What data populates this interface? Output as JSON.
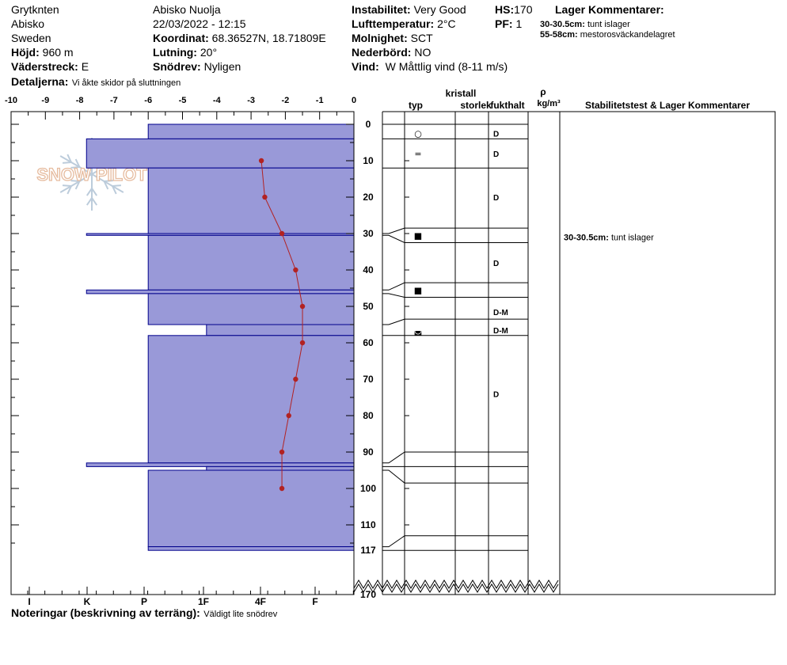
{
  "header": {
    "col1": {
      "line1": "Grytknten",
      "line2": "Abisko",
      "line3": "Sweden",
      "hojd_label": "Höjd:",
      "hojd_value": "960 m",
      "vaderstreck_label": "Väderstreck:",
      "vaderstreck_value": "E"
    },
    "col2": {
      "line1": "Abisko Nuolja",
      "line2": "22/03/2022 - 12:15",
      "koordinat_label": "Koordinat:",
      "koordinat_value": "68.36527N, 18.71809E",
      "lutning_label": "Lutning:",
      "lutning_value": "20°",
      "snodrev_label": "Snödrev:",
      "snodrev_value": "Nyligen"
    },
    "col3": {
      "instabilitet_label": "Instabilitet:",
      "instabilitet_value": "Very Good",
      "luft_label": "Lufttemperatur:",
      "luft_value": "2°C",
      "molnighet_label": "Molnighet:",
      "molnighet_value": "SCT",
      "nederbord_label": "Nederbörd:",
      "nederbord_value": "NO",
      "vind_label": "Vind:",
      "vind_value": "W Måttlig vind (8-11 m/s)"
    },
    "col4": {
      "hs_label": "HS:",
      "hs_value": "170",
      "pf_label": "PF:",
      "pf_value": "1"
    },
    "lager": {
      "title": "Lager Kommentarer:",
      "items": [
        {
          "range": "30-30.5cm:",
          "text": "tunt islager"
        },
        {
          "range": "55-58cm:",
          "text": "mestorosväckandelagret"
        }
      ]
    },
    "detaljer_label": "Detaljerna:",
    "detaljer_value": "Vi åkte skidor på sluttningen"
  },
  "notes": {
    "label": "Noteringar (beskrivning av terräng):",
    "value": "Väldigt lite snödrev"
  },
  "logo_text": "SNOW PILOT",
  "columns": {
    "kristall": "kristall",
    "typ": "typ",
    "storlek": "storlek",
    "fukthalt": "fukthalt",
    "rho": "ρ",
    "rho_unit": "kg/m³",
    "stab": "Stabilitetstest & Lager Kommentarer"
  },
  "colors": {
    "hardness_fill": "#9999d8",
    "hardness_stroke": "#00008b",
    "temp": "#b22222"
  },
  "chart_data": {
    "type": "snow-profile",
    "temperature_axis": {
      "ticks": [
        "-10",
        "-9",
        "-8",
        "-7",
        "-6",
        "-5",
        "-4",
        "-3",
        "-2",
        "-1",
        "0"
      ],
      "range": [
        -10,
        0
      ]
    },
    "hardness_axis": {
      "ticks": [
        "I",
        "K",
        "P",
        "1F",
        "4F",
        "F"
      ]
    },
    "depth_ticks": [
      "0",
      "10",
      "20",
      "30",
      "40",
      "50",
      "60",
      "70",
      "80",
      "90",
      "100",
      "110",
      "117",
      "170"
    ],
    "depth_range": [
      0,
      117
    ],
    "temperature_profile": [
      {
        "depth": 10,
        "temp": -2.7
      },
      {
        "depth": 20,
        "temp": -2.6
      },
      {
        "depth": 30,
        "temp": -2.1
      },
      {
        "depth": 40,
        "temp": -1.7
      },
      {
        "depth": 50,
        "temp": -1.5
      },
      {
        "depth": 60,
        "temp": -1.5
      },
      {
        "depth": 70,
        "temp": -1.7
      },
      {
        "depth": 80,
        "temp": -1.9
      },
      {
        "depth": 90,
        "temp": -2.1
      },
      {
        "depth": 100,
        "temp": -2.1
      }
    ],
    "hardness_layers": [
      {
        "top": 0,
        "bottom": 4,
        "hardness": 6
      },
      {
        "top": 4,
        "bottom": 12,
        "hardness": 7.8
      },
      {
        "top": 12,
        "bottom": 30,
        "hardness": 6
      },
      {
        "top": 30,
        "bottom": 30.5,
        "hardness": 7.8
      },
      {
        "top": 30.5,
        "bottom": 45.5,
        "hardness": 6
      },
      {
        "top": 45.5,
        "bottom": 46.5,
        "hardness": 7.8
      },
      {
        "top": 46.5,
        "bottom": 55,
        "hardness": 6
      },
      {
        "top": 55,
        "bottom": 58,
        "hardness": 4.3
      },
      {
        "top": 58,
        "bottom": 93,
        "hardness": 6
      },
      {
        "top": 93,
        "bottom": 94,
        "hardness": 7.8
      },
      {
        "top": 94,
        "bottom": 95,
        "hardness": 4.3
      },
      {
        "top": 95,
        "bottom": 116,
        "hardness": 6
      },
      {
        "top": 116,
        "bottom": 117,
        "hardness": 6
      }
    ],
    "layer_boundaries": [
      0,
      4,
      12,
      28.5,
      32.5,
      43.5,
      47.5,
      53.5,
      58,
      90,
      94,
      98.5,
      113,
      117
    ],
    "grain_rows": [
      {
        "depth": 2.5,
        "symbol": "○",
        "moisture": "D"
      },
      {
        "depth": 8,
        "symbol": "=",
        "moisture": "D"
      },
      {
        "depth": 20,
        "symbol": "",
        "moisture": "D"
      },
      {
        "depth": 30.5,
        "symbol": "■",
        "moisture": ""
      },
      {
        "depth": 38,
        "symbol": "",
        "moisture": "D"
      },
      {
        "depth": 45.5,
        "symbol": "■",
        "moisture": ""
      },
      {
        "depth": 51.5,
        "symbol": "",
        "moisture": "D-M"
      },
      {
        "depth": 56.5,
        "symbol": "◛",
        "moisture": "D-M"
      },
      {
        "depth": 74,
        "symbol": "",
        "moisture": "D"
      }
    ],
    "stability_comments": [
      {
        "depth": 31,
        "range": "30-30.5cm:",
        "text": "tunt islager"
      }
    ]
  }
}
